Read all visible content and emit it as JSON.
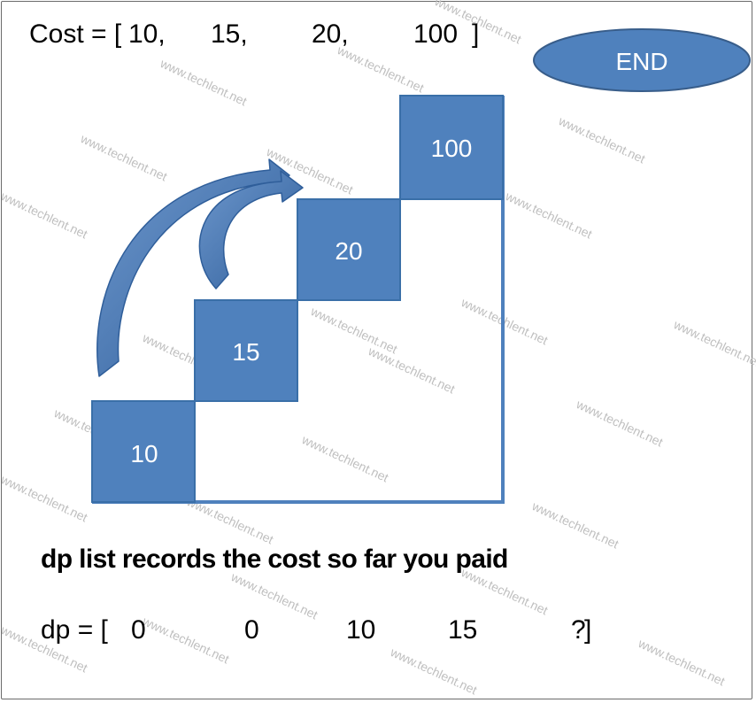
{
  "cost": {
    "prefix": "Cost = [",
    "values": [
      "10,",
      "15,",
      "20,",
      "100"
    ],
    "suffix": "]"
  },
  "end_label": "END",
  "steps": [
    "10",
    "15",
    "20",
    "100"
  ],
  "subtitle": "dp list records the cost so far you paid",
  "dp": {
    "prefix": "dp = [",
    "values": [
      "0",
      "0",
      "10",
      "15",
      "?"
    ],
    "suffix": "]"
  },
  "watermark": "www.techlent.net",
  "colors": {
    "box_fill": "#4F81BD",
    "box_stroke": "#3A6FA8",
    "outline": "#4F81BD",
    "arrow": "#4A78B5"
  }
}
